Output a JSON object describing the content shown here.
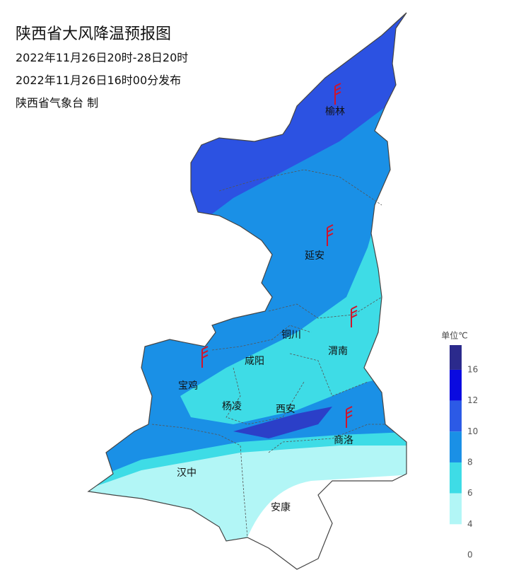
{
  "header": {
    "title": "陕西省大风降温预报图",
    "period": "2022年11月26日20时-28日20时",
    "issued": "2022年11月26日16时00分发布",
    "agency": "陕西省气象台 制"
  },
  "cities": [
    {
      "label": "榆林"
    },
    {
      "label": "延安"
    },
    {
      "label": "铜川"
    },
    {
      "label": "渭南"
    },
    {
      "label": "咸阳"
    },
    {
      "label": "宝鸡"
    },
    {
      "label": "杨凌"
    },
    {
      "label": "西安"
    },
    {
      "label": "商洛"
    },
    {
      "label": "汉中"
    },
    {
      "label": "安康"
    }
  ],
  "legend": {
    "title": "单位℃",
    "ticks": [
      16,
      12,
      10,
      8,
      6,
      4,
      0
    ],
    "colors": [
      "#2b2a8c",
      "#0a0ae0",
      "#2c5ae6",
      "#1a90e6",
      "#3edce6",
      "#b2f6f6"
    ]
  }
}
